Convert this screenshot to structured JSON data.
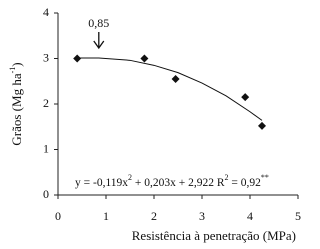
{
  "chart_data": {
    "type": "scatter",
    "x": [
      0.4,
      1.8,
      2.45,
      3.9,
      4.25
    ],
    "values": [
      3.0,
      3.0,
      2.55,
      2.15,
      1.52
    ],
    "color": "#111111",
    "fit": {
      "x": [
        0.4,
        0.85,
        1.5,
        2,
        2.5,
        3,
        3.5,
        4,
        4.25
      ],
      "values": [
        3.01,
        3.01,
        2.96,
        2.85,
        2.69,
        2.46,
        2.18,
        1.83,
        1.64
      ]
    },
    "xlim": [
      0,
      5
    ],
    "ylim": [
      0,
      4
    ],
    "xticks": [
      0,
      1,
      2,
      3,
      4,
      5
    ],
    "yticks": [
      0,
      1,
      2,
      3,
      4
    ],
    "grid": false,
    "xlabel": "Resistência à penetração (MPa)",
    "ylabel": [
      "Grãos (Mg ha",
      "-1",
      ")"
    ],
    "annotation": {
      "label": "0,85",
      "x": 0.85
    },
    "equation": [
      "y = -0,119x",
      "2",
      " + 0,203x + 2,922  R",
      "2",
      " = 0,92",
      "**"
    ]
  }
}
